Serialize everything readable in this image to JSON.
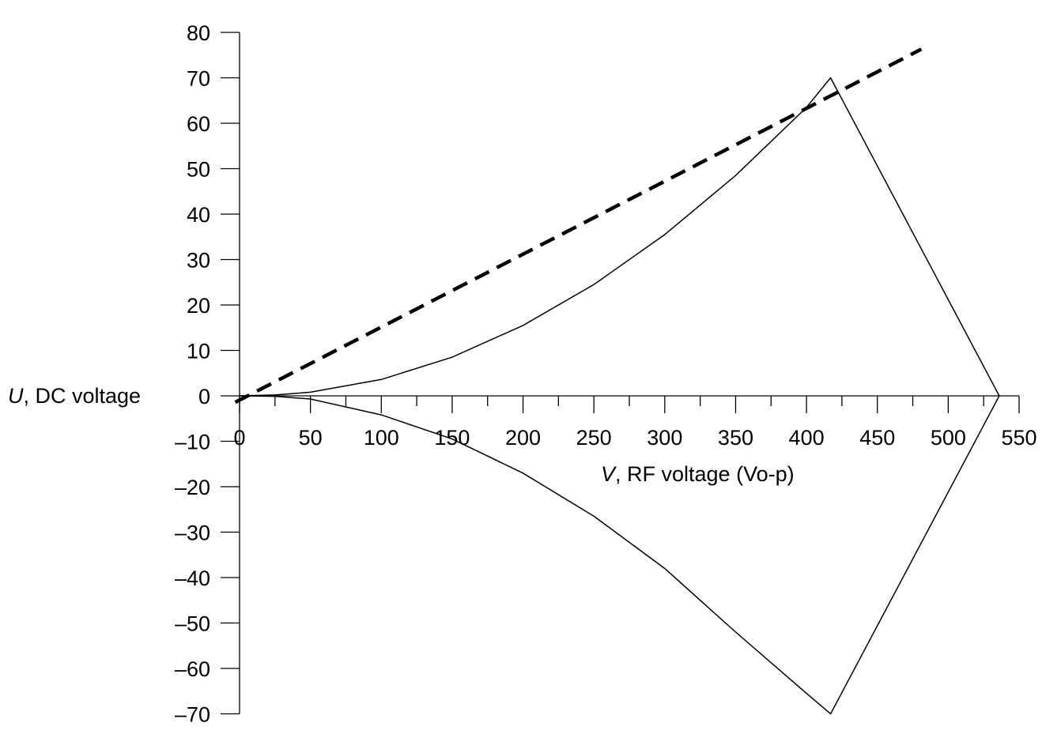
{
  "chart_data": {
    "type": "line",
    "title": "",
    "xlabel": {
      "italic": "V",
      "rest": ", RF voltage (Vo-p)"
    },
    "ylabel": {
      "italic": "U",
      "rest": ", DC voltage"
    },
    "xlim": [
      0,
      550
    ],
    "ylim": [
      -70,
      80
    ],
    "x_ticks": [
      0,
      50,
      100,
      150,
      200,
      250,
      300,
      350,
      400,
      450,
      500,
      550
    ],
    "x_minor_step": 25,
    "y_ticks": [
      80,
      70,
      60,
      50,
      40,
      30,
      20,
      10,
      0,
      -10,
      -20,
      -30,
      -40,
      -50,
      -60,
      -70
    ],
    "y_tick_labels": [
      "80",
      "70",
      "60",
      "50",
      "40",
      "30",
      "20",
      "10",
      "0",
      "–10",
      "–20",
      "–30",
      "–40",
      "–50",
      "–60",
      "–70"
    ],
    "grid": false,
    "legend": "none",
    "series": [
      {
        "style": "solid",
        "color": "#000000",
        "points": [
          [
            0,
            0
          ],
          [
            25,
            0.2
          ],
          [
            50,
            0.8
          ],
          [
            100,
            3.6
          ],
          [
            150,
            8.5
          ],
          [
            200,
            15.5
          ],
          [
            250,
            24.5
          ],
          [
            300,
            35.5
          ],
          [
            350,
            48.5
          ],
          [
            400,
            63.5
          ],
          [
            417,
            70
          ],
          [
            536,
            0
          ]
        ]
      },
      {
        "style": "solid",
        "color": "#000000",
        "points": [
          [
            0,
            0
          ],
          [
            25,
            -0.1
          ],
          [
            50,
            -0.7
          ],
          [
            100,
            -4.2
          ],
          [
            150,
            -9.5
          ],
          [
            200,
            -17
          ],
          [
            250,
            -26.5
          ],
          [
            300,
            -38
          ],
          [
            350,
            -52
          ],
          [
            400,
            -65.5
          ],
          [
            417,
            -70
          ],
          [
            536,
            0
          ]
        ]
      },
      {
        "style": "dashed",
        "color": "#000000",
        "points": [
          [
            -3,
            -1.4
          ],
          [
            481,
            76.3
          ]
        ]
      }
    ]
  }
}
